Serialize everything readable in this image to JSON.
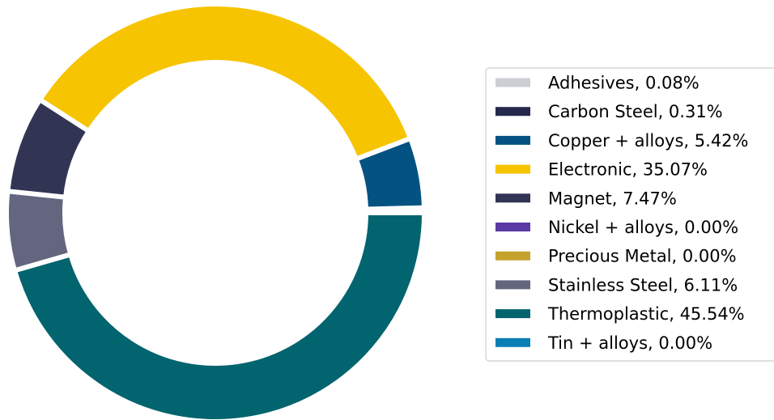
{
  "chart_data": {
    "type": "pie",
    "variant": "donut",
    "title": "",
    "legend_placement": "right",
    "slices": [
      {
        "label": "Adhesives",
        "value": 0.08,
        "display": "Adhesives, 0.08%",
        "color": "#cdcdd6"
      },
      {
        "label": "Carbon Steel",
        "value": 0.31,
        "display": "Carbon Steel, 0.31%",
        "color": "#252a4c"
      },
      {
        "label": "Copper + alloys",
        "value": 5.42,
        "display": "Copper + alloys, 5.42%",
        "color": "#035281"
      },
      {
        "label": "Electronic",
        "value": 35.07,
        "display": "Electronic, 35.07%",
        "color": "#f6c400"
      },
      {
        "label": "Magnet",
        "value": 7.47,
        "display": "Magnet, 7.47%",
        "color": "#323454"
      },
      {
        "label": "Nickel + alloys",
        "value": 0.0,
        "display": "Nickel + alloys, 0.00%",
        "color": "#5b3aa6"
      },
      {
        "label": "Precious Metal",
        "value": 0.0,
        "display": "Precious Metal, 0.00%",
        "color": "#c5a22e"
      },
      {
        "label": "Stainless Steel",
        "value": 6.11,
        "display": "Stainless Steel, 6.11%",
        "color": "#646680"
      },
      {
        "label": "Thermoplastic",
        "value": 45.54,
        "display": "Thermoplastic, 45.54%",
        "color": "#02646e"
      },
      {
        "label": "Tin + alloys",
        "value": 0.0,
        "display": "Tin + alloys, 0.00%",
        "color": "#0a7fb4"
      }
    ]
  }
}
